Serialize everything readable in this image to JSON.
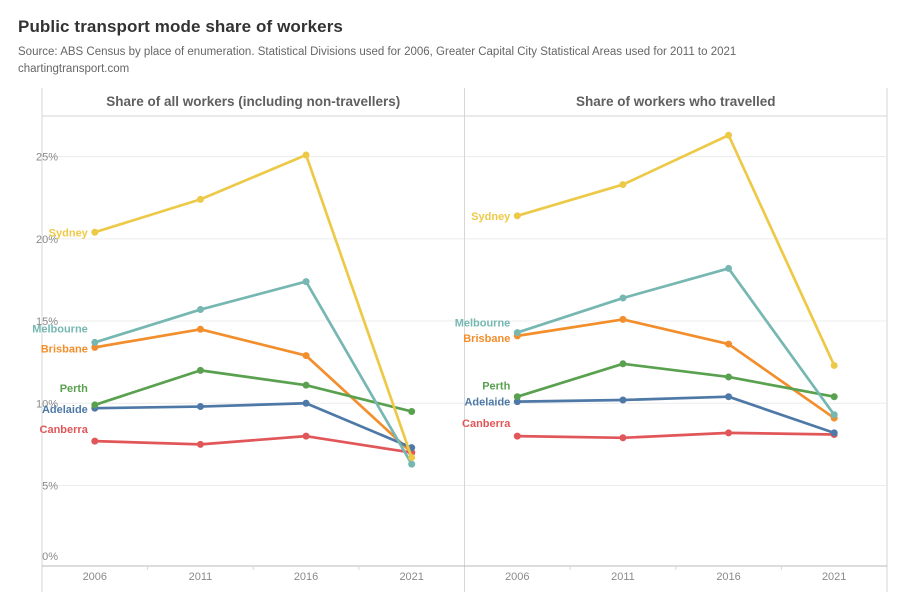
{
  "header": {
    "title": "Public transport mode share of workers",
    "subtitle_line1": "Source: ABS Census by place of enumeration. Statistical Divisions used for 2006, Greater Capital City Statistical Areas used for 2011 to 2021",
    "subtitle_line2": "chartingtransport.com"
  },
  "chart_data": {
    "type": "line",
    "categories": [
      "2006",
      "2011",
      "2016",
      "2021"
    ],
    "y_ticks": [
      {
        "label": "0%",
        "value": 0
      },
      {
        "label": "5%",
        "value": 5
      },
      {
        "label": "10%",
        "value": 10
      },
      {
        "label": "15%",
        "value": 15
      },
      {
        "label": "20%",
        "value": 20
      },
      {
        "label": "25%",
        "value": 25
      }
    ],
    "ylim": [
      0,
      27.5
    ],
    "grid": true,
    "legend": "direct labels at first data point",
    "draw_order": [
      2,
      5,
      4,
      3,
      1,
      0
    ],
    "panels": [
      {
        "title": "Share of all workers (including non-travellers)",
        "series": [
          {
            "name": "Sydney",
            "color": "#EDC948",
            "values": [
              20.4,
              22.4,
              25.1,
              6.7
            ],
            "label_dy": 0
          },
          {
            "name": "Melbourne",
            "color": "#76B7B2",
            "values": [
              13.7,
              15.7,
              17.4,
              6.3
            ],
            "label_dy": -14
          },
          {
            "name": "Brisbane",
            "color": "#F28E2B",
            "values": [
              13.4,
              14.5,
              12.9,
              7.0
            ],
            "label_dy": 1
          },
          {
            "name": "Perth",
            "color": "#59A14F",
            "values": [
              9.9,
              12.0,
              11.1,
              9.5
            ],
            "label_dy": -17
          },
          {
            "name": "Adelaide",
            "color": "#4E79A7",
            "values": [
              9.7,
              9.8,
              10.0,
              7.3
            ],
            "label_dy": 1
          },
          {
            "name": "Canberra",
            "color": "#E15759",
            "values": [
              7.7,
              7.5,
              8.0,
              7.0
            ],
            "label_dy": -12
          }
        ]
      },
      {
        "title": "Share of workers who travelled",
        "series": [
          {
            "name": "Sydney",
            "color": "#EDC948",
            "values": [
              21.4,
              23.3,
              26.3,
              12.3
            ],
            "label_dy": 0
          },
          {
            "name": "Melbourne",
            "color": "#76B7B2",
            "values": [
              14.3,
              16.4,
              18.2,
              9.3
            ],
            "label_dy": -10
          },
          {
            "name": "Brisbane",
            "color": "#F28E2B",
            "values": [
              14.1,
              15.1,
              13.6,
              9.1
            ],
            "label_dy": 2
          },
          {
            "name": "Perth",
            "color": "#59A14F",
            "values": [
              10.4,
              12.4,
              11.6,
              10.4
            ],
            "label_dy": -11
          },
          {
            "name": "Adelaide",
            "color": "#4E79A7",
            "values": [
              10.1,
              10.2,
              10.4,
              8.2
            ],
            "label_dy": 0
          },
          {
            "name": "Canberra",
            "color": "#E15759",
            "values": [
              8.0,
              7.9,
              8.2,
              8.1
            ],
            "label_dy": -13
          }
        ]
      }
    ],
    "style_colors": {
      "title": "#333333",
      "subtitle": "#666666",
      "panel_title": "#5f5f5f",
      "axis_label": "#8a8a8a",
      "gridline": "#ececec",
      "border": "#d6d6d6",
      "axis_line": "#b8b8b8"
    }
  }
}
